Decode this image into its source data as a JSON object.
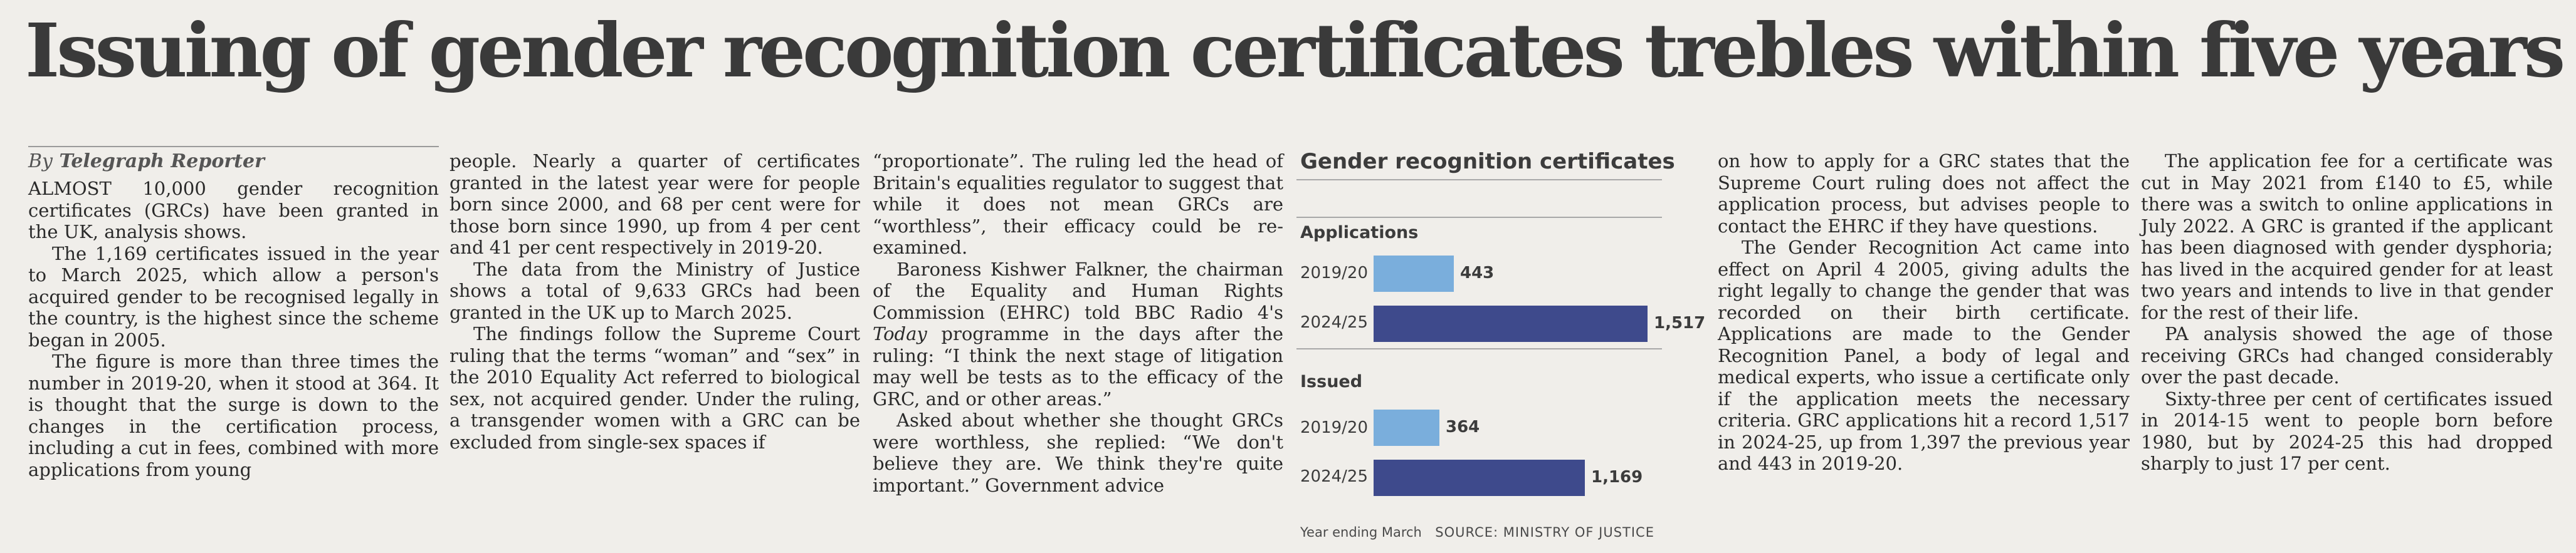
{
  "headline": "Issuing of gender recognition certificates trebles within five years",
  "byline": {
    "prefix": "By",
    "name": "Telegraph Reporter"
  },
  "columns": {
    "col1": [
      "ALMOST 10,000 gender recognition certificates (GRCs) have been granted in the UK, analysis shows.",
      "The 1,169 certificates issued in the year to March 2025, which allow a person's acquired gender to be recognised legally in the country, is the highest since the scheme began in 2005.",
      "The figure is more than three times the number in 2019-20, when it stood at 364. It is thought that the surge is down to the changes in the certification process, including a cut in fees, combined with more applications from young"
    ],
    "col2": [
      "people. Nearly a quarter of certificates granted in the latest year were for people born since 2000, and 68 per cent were for those born since 1990, up from 4 per cent and 41 per cent respectively in 2019-20.",
      "The data from the Ministry of Justice shows a total of 9,633 GRCs had been granted in the UK up to March 2025.",
      "The findings follow the Supreme Court ruling that the terms “woman” and “sex” in the 2010 Equality Act referred to biological sex, not acquired gender. Under the ruling, a transgender women with a GRC can be excluded from single-sex spaces if"
    ],
    "col3": [
      "“proportionate”. The ruling led the head of Britain's equalities regulator to suggest that while it does not mean GRCs are “worthless”, their efficacy could be re-examined.",
      "Baroness Kishwer Falkner, the chairman of the Equality and Human Rights Commission (EHRC) told BBC Radio 4's",
      "Today",
      " programme in the days after the ruling: “I think the next stage of litigation may well be tests as to the efficacy of the GRC, and or other areas.”",
      "Asked about whether she thought GRCs were worthless, she replied: “We don't believe they are. We think they're quite important.” Government advice"
    ],
    "col4": [
      "on how to apply for a GRC states that the Supreme Court ruling does not affect the application process, but advises people to contact the EHRC if they have questions.",
      "The Gender Recognition Act came into effect on April 4 2005, giving adults the right legally to change the gender that was recorded on their birth certificate. Applications are made to the Gender Recognition Panel, a body of legal and medical experts, who issue a certificate only if the application meets the necessary criteria. GRC applications hit a record 1,517 in 2024-25, up from 1,397 the previous year and 443 in 2019-20."
    ],
    "col5": [
      "The application fee for a certificate was cut in May 2021 from £140 to £5, while there was a switch to online applications in July 2022. A GRC is granted if the applicant has been diagnosed with gender dysphoria; has lived in the acquired gender for at least two years and intends to live in that gender for the rest of their life.",
      "PA analysis showed the age of those receiving GRCs had changed considerably over the past decade.",
      "Sixty-three per cent of certificates issued in 2014-15 went to people born before 1980, but by 2024-25 this had dropped sharply to just 17 per cent."
    ]
  },
  "chart_data": {
    "type": "bar",
    "orientation": "horizontal",
    "title": "Gender recognition certificates",
    "groups": [
      {
        "name": "Applications",
        "categories": [
          "2019/20",
          "2024/25"
        ],
        "values": [
          443,
          1517
        ],
        "labels": [
          "443",
          "1,517"
        ]
      },
      {
        "name": "Issued",
        "categories": [
          "2019/20",
          "2024/25"
        ],
        "values": [
          364,
          1169
        ],
        "labels": [
          "364",
          "1,169"
        ]
      }
    ],
    "xmax": 1517,
    "footnote": "Year ending March",
    "source": "SOURCE: MINISTRY OF JUSTICE",
    "colors": {
      "light": "#7aaedc",
      "dark": "#3e4a8c"
    }
  }
}
